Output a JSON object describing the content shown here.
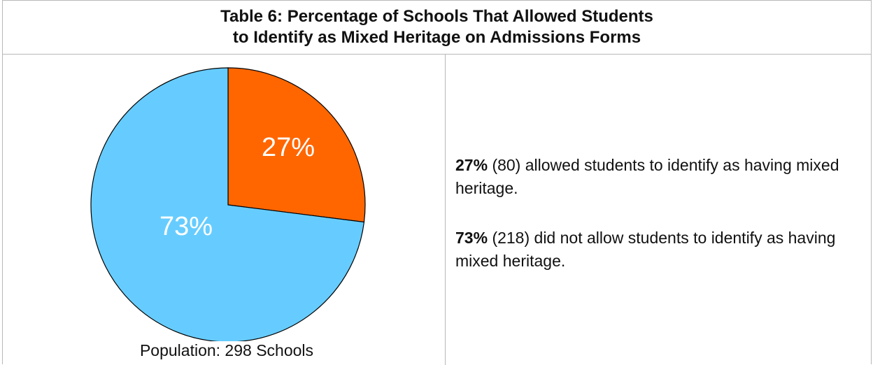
{
  "title": {
    "line1": "Table 6: Percentage of Schools That Allowed Students",
    "line2": "to Identify as Mixed Heritage on Admissions Forms"
  },
  "population_label": "Population: 298 Schools",
  "colors": {
    "allowed": "#ff6600",
    "not_allowed": "#66ccff",
    "label_text": "#ffffff",
    "border": "#b8b8b8"
  },
  "statements": [
    {
      "percent": "27%",
      "count": "(80)",
      "text": "allowed students to identify as having mixed heritage."
    },
    {
      "percent": "73%",
      "count": "(218)",
      "text": "did not allow students to identify as having mixed heritage."
    }
  ],
  "chart_data": {
    "type": "pie",
    "slices": [
      {
        "value": 27,
        "label": "27%",
        "color": "#ff6600"
      },
      {
        "value": 73,
        "label": "73%",
        "color": "#66ccff"
      }
    ]
  }
}
